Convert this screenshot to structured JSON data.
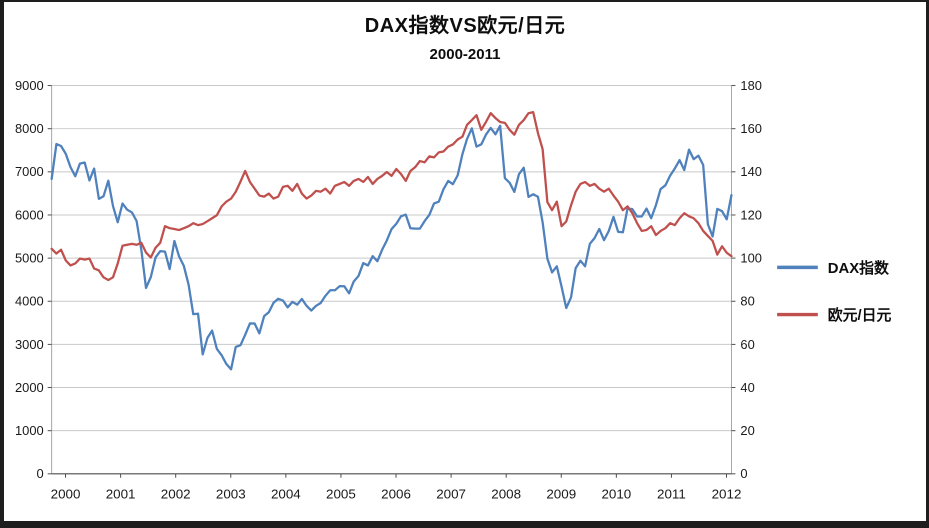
{
  "frame": {
    "title": "DAX指数VS欧元/日元",
    "subtitle": "2000-2011"
  },
  "chart_data": {
    "type": "line",
    "title": "DAX指数VS欧元/日元",
    "subtitle": "2000-2011",
    "x_start_year": 2000,
    "points_per_year": 12,
    "x_tick_labels": [
      "2000",
      "2001",
      "2002",
      "2003",
      "2004",
      "2005",
      "2006",
      "2007",
      "2008",
      "2009",
      "2010",
      "2011",
      "2012"
    ],
    "left_axis": {
      "label_for": "DAX指数",
      "min": 0,
      "max": 9000,
      "step": 1000,
      "ticks": [
        0,
        1000,
        2000,
        3000,
        4000,
        5000,
        6000,
        7000,
        8000,
        9000
      ]
    },
    "right_axis": {
      "label_for": "欧元/日元",
      "min": 0,
      "max": 180,
      "step": 20,
      "ticks": [
        0,
        20,
        40,
        60,
        80,
        100,
        120,
        140,
        160,
        180
      ]
    },
    "grid": true,
    "legend_position": "right",
    "colors": {
      "gridline": "#c9c9c9",
      "axis_line": "#a6a6a6",
      "baseline": "#4d4d4d",
      "tick_text": "#1a1a1a"
    },
    "series": [
      {
        "name": "DAX指数",
        "color": "#4F81BD",
        "axis": "left",
        "values": [
          6835,
          7644,
          7599,
          7415,
          7109,
          6898,
          7191,
          7216,
          6798,
          7077,
          6372,
          6434,
          6795,
          6208,
          5830,
          6265,
          6123,
          6058,
          5861,
          5188,
          4308,
          4559,
          5015,
          5160,
          5151,
          4745,
          5397,
          5041,
          4818,
          4383,
          3700,
          3712,
          2769,
          3152,
          3320,
          2893,
          2747,
          2547,
          2423,
          2942,
          2982,
          3221,
          3487,
          3484,
          3256,
          3655,
          3746,
          3965,
          4058,
          4018,
          3857,
          3985,
          3921,
          4053,
          3895,
          3785,
          3893,
          3960,
          4126,
          4256,
          4254,
          4350,
          4348,
          4184,
          4460,
          4586,
          4886,
          4830,
          5044,
          4929,
          5193,
          5408,
          5674,
          5796,
          5970,
          6009,
          5692,
          5683,
          5682,
          5859,
          6004,
          6269,
          6309,
          6597,
          6789,
          6715,
          6917,
          7409,
          7765,
          8007,
          7584,
          7638,
          7861,
          8019,
          7870,
          8067,
          6851,
          6748,
          6535,
          6948,
          7096,
          6418,
          6479,
          6422,
          5831,
          4988,
          4669,
          4810,
          4338,
          3843,
          4085,
          4769,
          4940,
          4809,
          5332,
          5464,
          5675,
          5415,
          5626,
          5957,
          5609,
          5598,
          6154,
          6136,
          5964,
          5966,
          6148,
          5925,
          6229,
          6601,
          6688,
          6914,
          7077,
          7272,
          7041,
          7514,
          7294,
          7376,
          7159,
          5785,
          5502,
          6141,
          6088,
          5898,
          6459
        ]
      },
      {
        "name": "欧元/日元",
        "color": "#C0504D",
        "axis": "right",
        "values": [
          104.3,
          102.1,
          103.9,
          98.9,
          96.6,
          97.5,
          99.8,
          99.3,
          99.8,
          95.2,
          94.3,
          91.1,
          89.8,
          91.1,
          97.5,
          105.7,
          106.2,
          106.6,
          106.2,
          107.1,
          102.6,
          100.3,
          104.8,
          107.1,
          114.8,
          113.9,
          113.5,
          113.0,
          113.9,
          114.8,
          116.2,
          115.3,
          115.8,
          117.1,
          118.5,
          119.9,
          124.0,
          126.2,
          127.6,
          130.8,
          135.5,
          140.4,
          135.3,
          132.2,
          129.0,
          128.5,
          129.9,
          127.6,
          128.5,
          133.0,
          133.5,
          131.2,
          134.4,
          129.9,
          127.6,
          129.0,
          131.2,
          130.8,
          132.2,
          129.9,
          133.5,
          134.4,
          135.3,
          133.5,
          135.8,
          136.7,
          135.3,
          137.6,
          134.4,
          136.7,
          138.1,
          139.9,
          138.1,
          141.3,
          139.0,
          135.8,
          140.4,
          142.2,
          145.0,
          144.4,
          147.2,
          146.7,
          149.0,
          149.4,
          151.7,
          152.7,
          155.0,
          156.3,
          161.8,
          164.0,
          166.3,
          159.5,
          163.1,
          167.2,
          164.9,
          163.1,
          162.7,
          159.5,
          157.2,
          161.8,
          164.0,
          167.2,
          167.7,
          158.0,
          150.5,
          126.0,
          122.2,
          126.2,
          114.8,
          117.0,
          124.4,
          130.8,
          134.4,
          135.3,
          133.5,
          134.4,
          132.2,
          130.8,
          132.2,
          129.0,
          126.2,
          122.2,
          124.0,
          120.8,
          116.2,
          112.6,
          113.0,
          114.8,
          110.7,
          112.6,
          113.9,
          116.2,
          115.3,
          118.5,
          120.8,
          119.4,
          118.5,
          116.2,
          112.6,
          110.3,
          108.0,
          101.6,
          105.5,
          102.5,
          100.9
        ]
      }
    ],
    "legend": {
      "items": [
        {
          "label": "DAX指数",
          "color": "#4F81BD"
        },
        {
          "label": "欧元/日元",
          "color": "#C0504D"
        }
      ]
    }
  }
}
